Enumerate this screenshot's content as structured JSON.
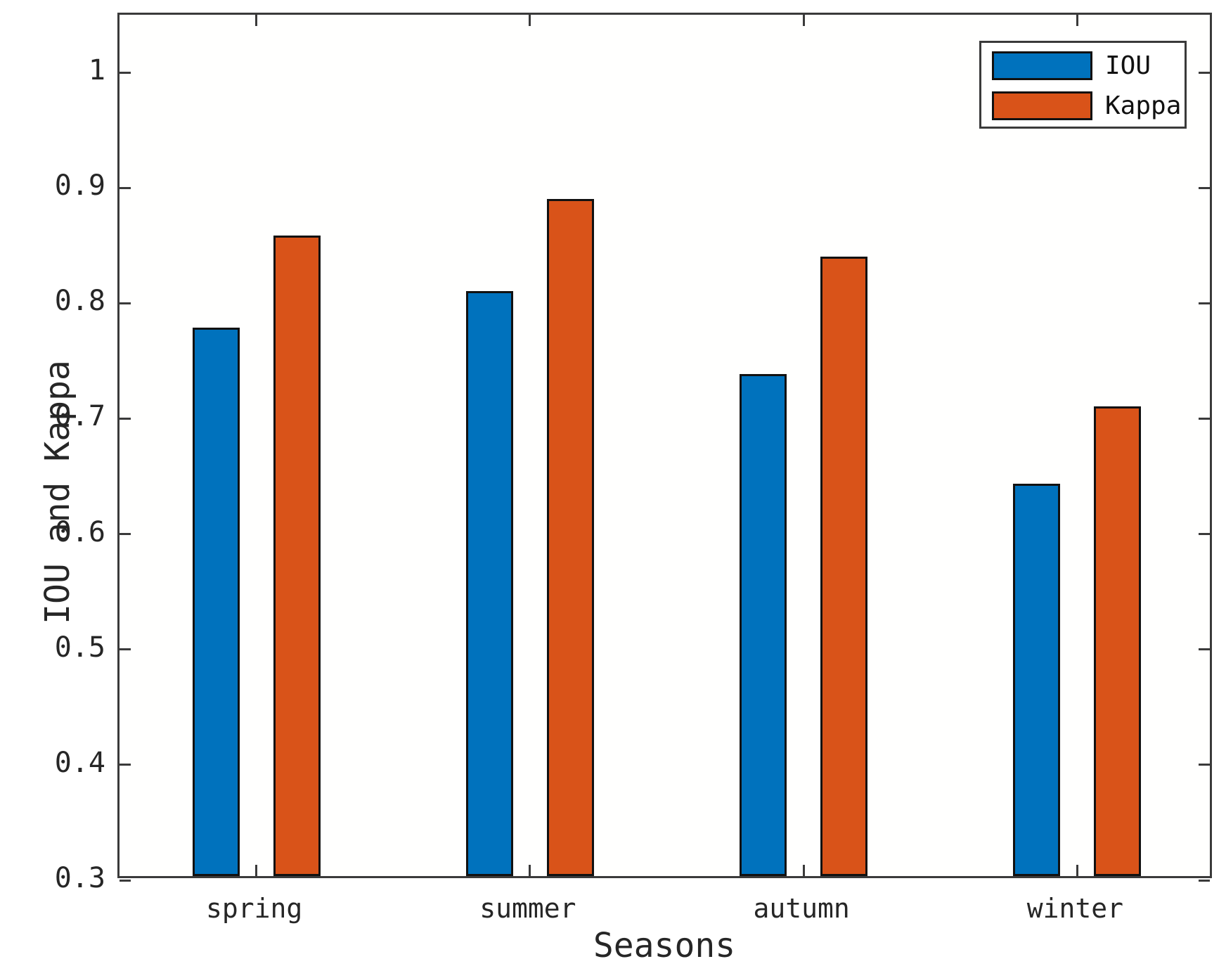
{
  "chart_data": {
    "type": "bar",
    "title": "",
    "categories": [
      "spring",
      "summer",
      "autumn",
      "winter"
    ],
    "series": [
      {
        "name": "IOU",
        "color": "#0072BD",
        "values": [
          0.775,
          0.807,
          0.735,
          0.64
        ]
      },
      {
        "name": "Kappa",
        "color": "#D95319",
        "values": [
          0.855,
          0.887,
          0.837,
          0.707
        ]
      }
    ],
    "xlabel": "Seasons",
    "ylabel": "IOU and Kappa",
    "ylim": [
      0.3,
      1.05
    ],
    "yticks": [
      0.3,
      0.4,
      0.5,
      0.6,
      0.7,
      0.8,
      0.9,
      1
    ],
    "ytick_labels": [
      "0.3",
      "0.4",
      "0.5",
      "0.6",
      "0.7",
      "0.8",
      "0.9",
      "1"
    ],
    "grid": false,
    "legend_position": "top-right",
    "axis_box": true
  },
  "style": {
    "axis_color": "#3a3a3a",
    "bar_edge_color": "#111111",
    "text_color": "#262626",
    "background": "#ffffff"
  }
}
